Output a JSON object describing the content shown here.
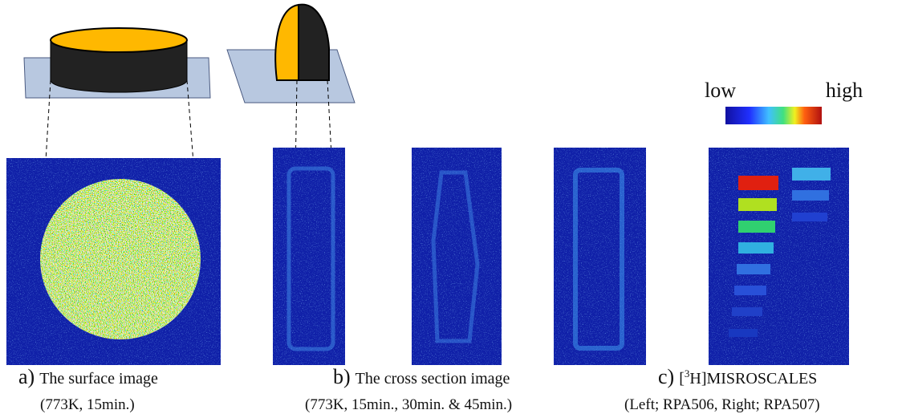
{
  "color_scale": {
    "low": "low",
    "high": "high"
  },
  "captions": [
    {
      "label": "a)",
      "title": "The surface image",
      "detail": "(773K, 15min.)"
    },
    {
      "label": "b)",
      "title": "The cross section image",
      "detail": "(773K, 15min., 30min. & 45min.)"
    },
    {
      "label": "c)",
      "title_parts": [
        "[",
        "3",
        "H]MISROSCALES"
      ],
      "detail": "(Left; RPA506, Right; RPA507)"
    }
  ]
}
